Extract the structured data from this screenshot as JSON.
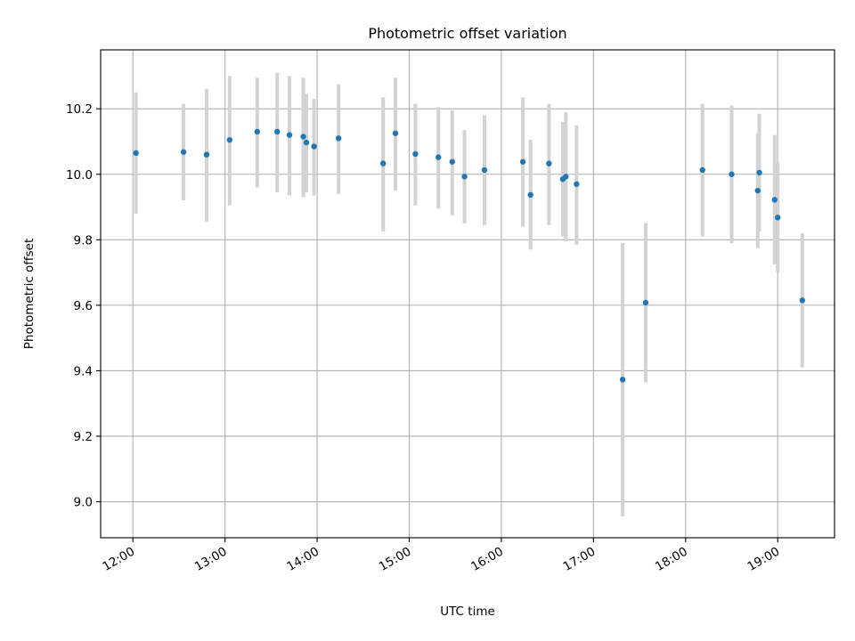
{
  "chart_data": {
    "type": "scatter",
    "title": "Photometric offset variation",
    "xlabel": "UTC time",
    "ylabel": "Photometric offset",
    "x_is_time": true,
    "xlim": [
      "11:39",
      "19:37"
    ],
    "ylim": [
      8.89,
      10.38
    ],
    "xticks": [
      {
        "value": "12:00",
        "label": "12:00"
      },
      {
        "value": "13:00",
        "label": "13:00"
      },
      {
        "value": "14:00",
        "label": "14:00"
      },
      {
        "value": "15:00",
        "label": "15:00"
      },
      {
        "value": "16:00",
        "label": "16:00"
      },
      {
        "value": "17:00",
        "label": "17:00"
      },
      {
        "value": "18:00",
        "label": "18:00"
      },
      {
        "value": "19:00",
        "label": "19:00"
      }
    ],
    "yticks": [
      {
        "value": 9.0,
        "label": "9.0"
      },
      {
        "value": 9.2,
        "label": "9.2"
      },
      {
        "value": 9.4,
        "label": "9.4"
      },
      {
        "value": 9.6,
        "label": "9.6"
      },
      {
        "value": 9.8,
        "label": "9.8"
      },
      {
        "value": 10.0,
        "label": "10.0"
      },
      {
        "value": 10.2,
        "label": "10.2"
      }
    ],
    "grid": true,
    "marker_color": "#1f77b4",
    "errorbar_color": "#d3d3d3",
    "points": [
      {
        "x": "12:02",
        "y": 10.065,
        "ylo": 9.88,
        "yhi": 10.25
      },
      {
        "x": "12:33",
        "y": 10.068,
        "ylo": 9.92,
        "yhi": 10.215
      },
      {
        "x": "12:48",
        "y": 10.06,
        "ylo": 9.855,
        "yhi": 10.26
      },
      {
        "x": "13:03",
        "y": 10.105,
        "ylo": 9.905,
        "yhi": 10.3
      },
      {
        "x": "13:21",
        "y": 10.13,
        "ylo": 9.96,
        "yhi": 10.295
      },
      {
        "x": "13:34",
        "y": 10.13,
        "ylo": 9.945,
        "yhi": 10.31
      },
      {
        "x": "13:42",
        "y": 10.12,
        "ylo": 9.935,
        "yhi": 10.3
      },
      {
        "x": "13:51",
        "y": 10.115,
        "ylo": 9.93,
        "yhi": 10.295
      },
      {
        "x": "13:53",
        "y": 10.097,
        "ylo": 9.945,
        "yhi": 10.245
      },
      {
        "x": "13:58",
        "y": 10.085,
        "ylo": 9.935,
        "yhi": 10.23
      },
      {
        "x": "14:14",
        "y": 10.11,
        "ylo": 9.94,
        "yhi": 10.275
      },
      {
        "x": "14:43",
        "y": 10.033,
        "ylo": 9.825,
        "yhi": 10.235
      },
      {
        "x": "14:51",
        "y": 10.125,
        "ylo": 9.95,
        "yhi": 10.295
      },
      {
        "x": "15:04",
        "y": 10.062,
        "ylo": 9.905,
        "yhi": 10.215
      },
      {
        "x": "15:19",
        "y": 10.052,
        "ylo": 9.895,
        "yhi": 10.205
      },
      {
        "x": "15:28",
        "y": 10.038,
        "ylo": 9.875,
        "yhi": 10.195
      },
      {
        "x": "15:36",
        "y": 9.993,
        "ylo": 9.85,
        "yhi": 10.135
      },
      {
        "x": "15:49",
        "y": 10.013,
        "ylo": 9.845,
        "yhi": 10.18
      },
      {
        "x": "16:14",
        "y": 10.038,
        "ylo": 9.84,
        "yhi": 10.235
      },
      {
        "x": "16:19",
        "y": 9.937,
        "ylo": 9.77,
        "yhi": 10.105
      },
      {
        "x": "16:31",
        "y": 10.033,
        "ylo": 9.845,
        "yhi": 10.215
      },
      {
        "x": "16:40",
        "y": 9.985,
        "ylo": 9.81,
        "yhi": 10.16
      },
      {
        "x": "16:42",
        "y": 9.993,
        "ylo": 9.795,
        "yhi": 10.19
      },
      {
        "x": "16:49",
        "y": 9.97,
        "ylo": 9.785,
        "yhi": 10.15
      },
      {
        "x": "17:19",
        "y": 9.373,
        "ylo": 8.955,
        "yhi": 9.79
      },
      {
        "x": "17:34",
        "y": 9.608,
        "ylo": 9.365,
        "yhi": 9.85
      },
      {
        "x": "18:11",
        "y": 10.013,
        "ylo": 9.81,
        "yhi": 10.215
      },
      {
        "x": "18:30",
        "y": 10.0,
        "ylo": 9.79,
        "yhi": 10.21
      },
      {
        "x": "18:47",
        "y": 9.95,
        "ylo": 9.775,
        "yhi": 10.125
      },
      {
        "x": "18:48",
        "y": 10.005,
        "ylo": 9.825,
        "yhi": 10.185
      },
      {
        "x": "18:58",
        "y": 9.922,
        "ylo": 9.725,
        "yhi": 10.12
      },
      {
        "x": "19:00",
        "y": 9.868,
        "ylo": 9.7,
        "yhi": 10.035
      },
      {
        "x": "19:16",
        "y": 9.615,
        "ylo": 9.41,
        "yhi": 9.82
      }
    ]
  }
}
